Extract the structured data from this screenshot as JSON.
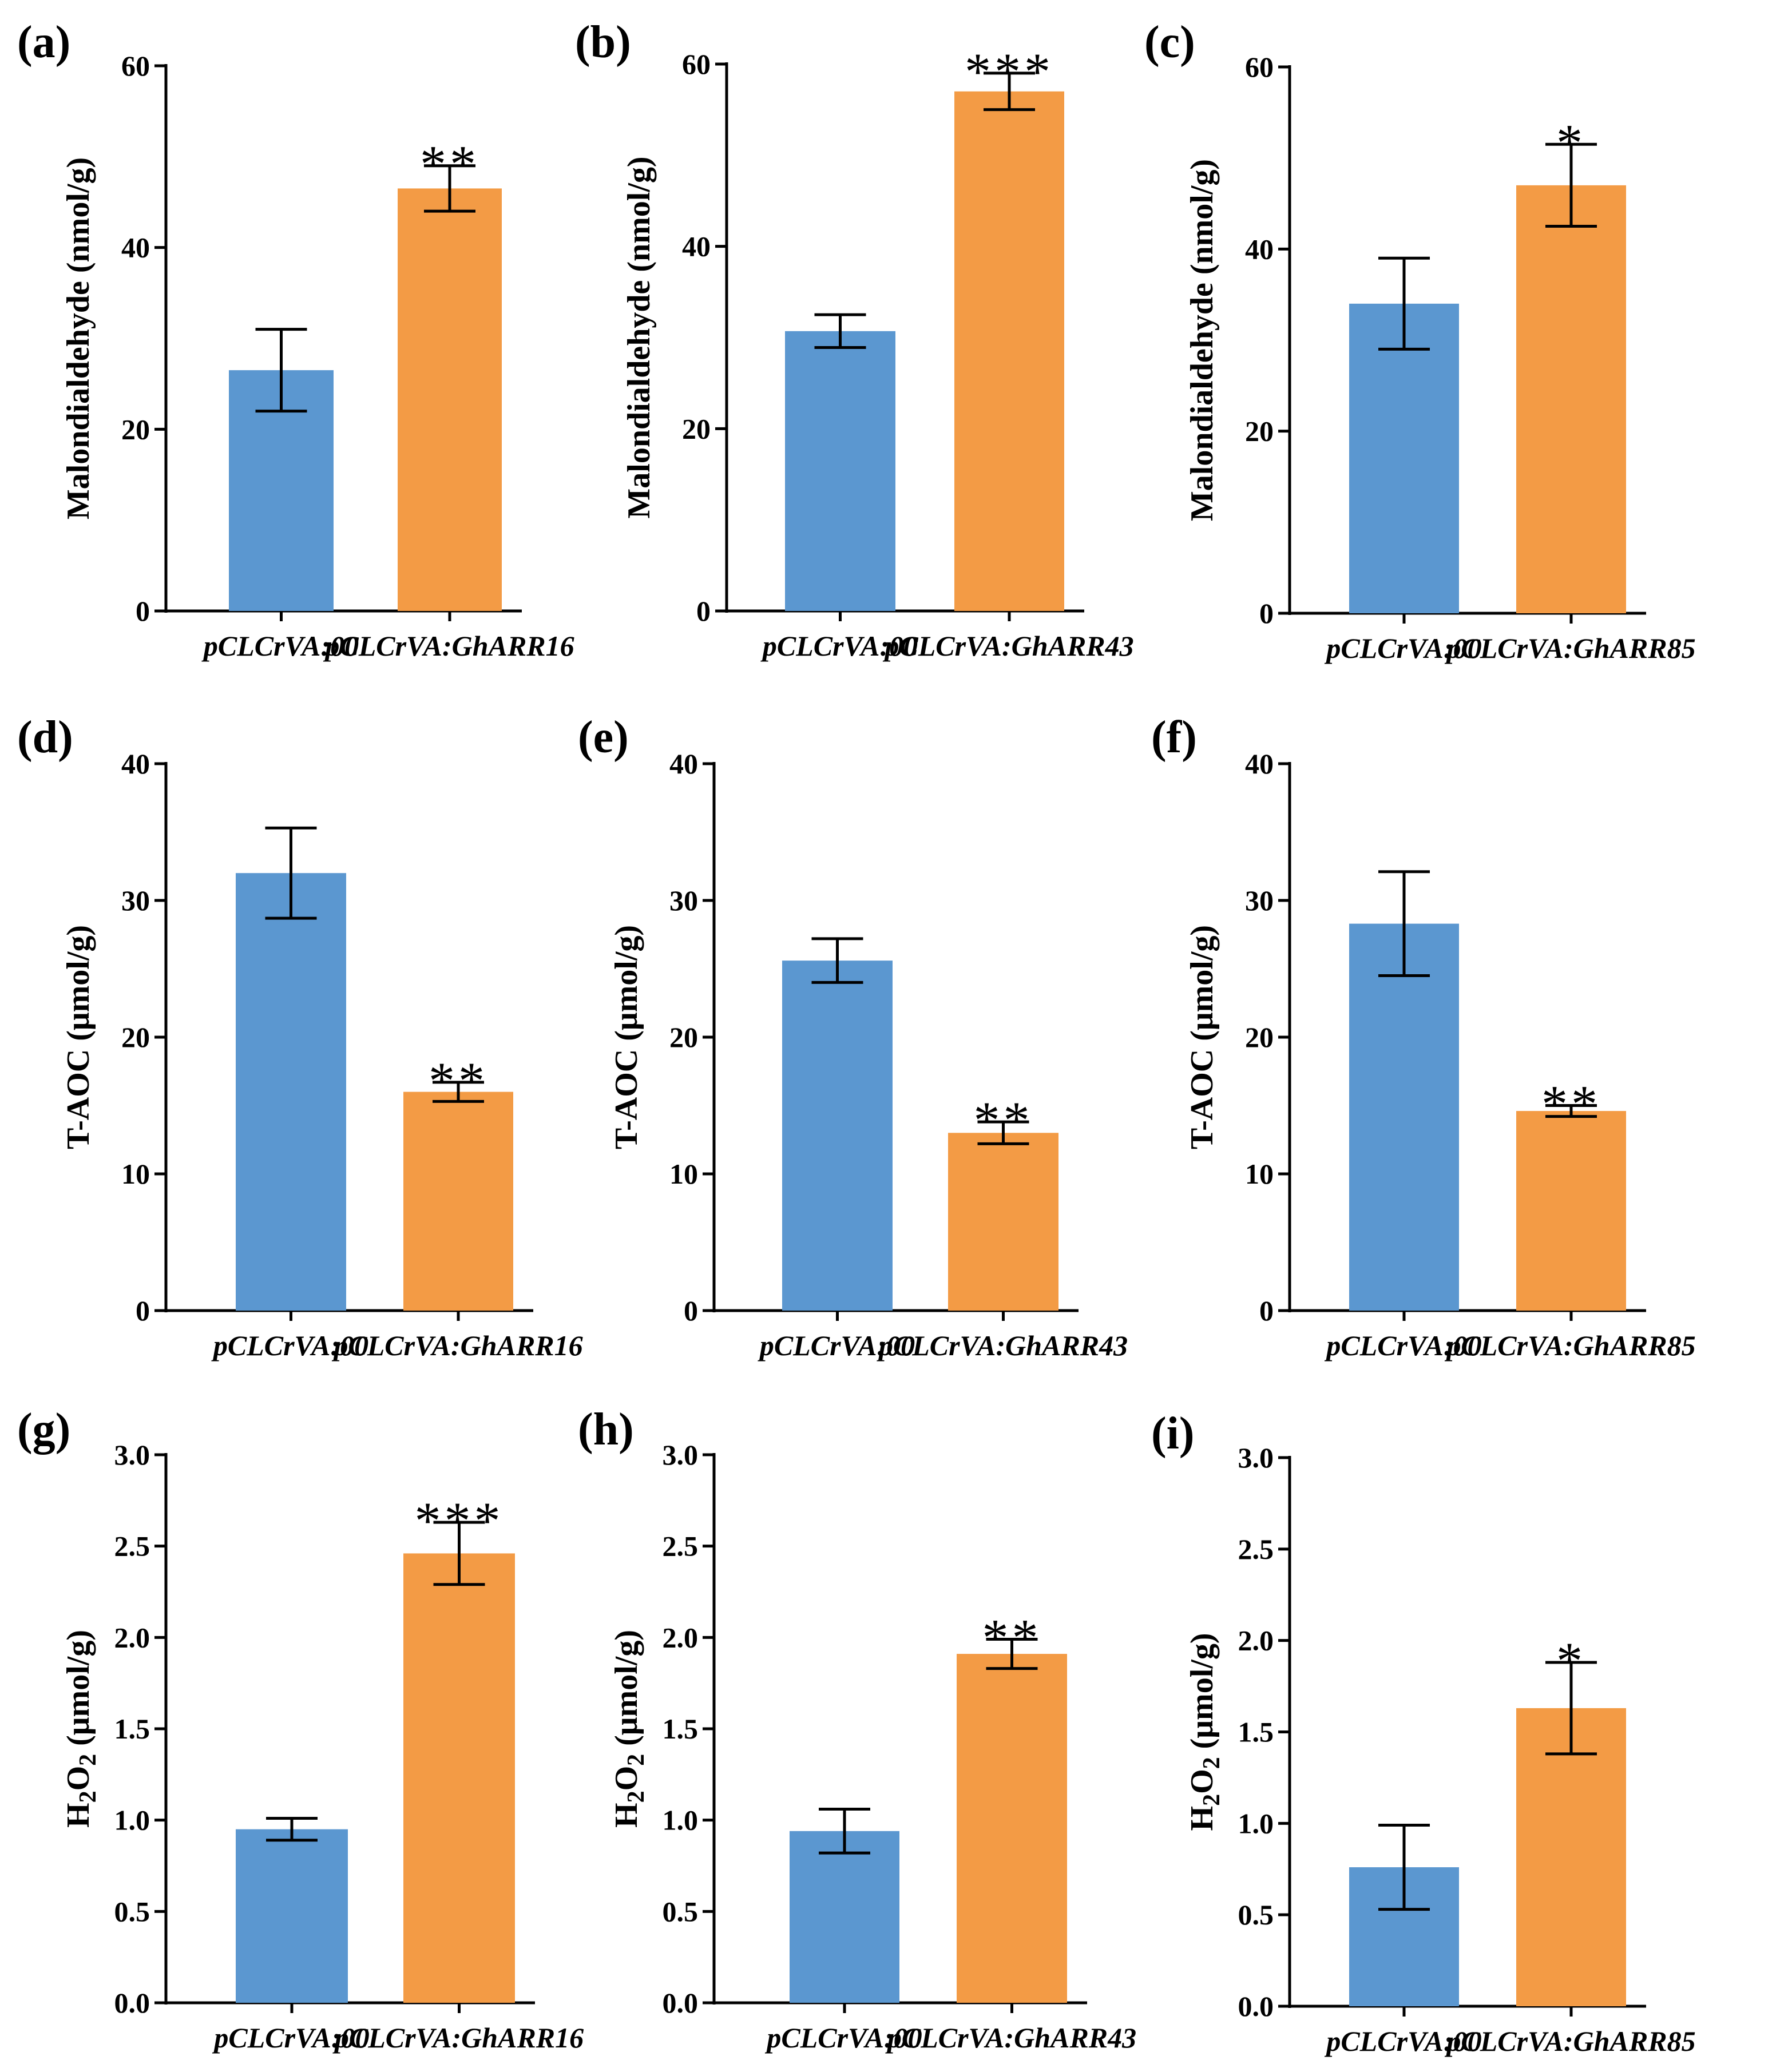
{
  "colors": {
    "control": "#5b97d0",
    "treatment": "#f39b45",
    "axis": "#000000"
  },
  "chart_data": [
    {
      "panel": "(a)",
      "type": "bar",
      "ylabel": "Malondialdehyde (nmol/g)",
      "ylim": [
        0,
        60
      ],
      "yticks": [
        "0",
        "20",
        "40",
        "60"
      ],
      "categories": [
        "pCLCrVA:00",
        "pCLCrVA:GhARR16"
      ],
      "values": [
        26.5,
        46.5
      ],
      "errors": [
        4.5,
        2.5
      ],
      "significance": [
        "",
        "**"
      ]
    },
    {
      "panel": "(b)",
      "type": "bar",
      "ylabel": "Malondialdehyde (nmol/g)",
      "ylim": [
        0,
        60
      ],
      "yticks": [
        "0",
        "20",
        "40",
        "60"
      ],
      "categories": [
        "pCLCrVA:00",
        "pCLCrVA:GhARR43"
      ],
      "values": [
        30.7,
        57.0
      ],
      "errors": [
        1.8,
        2.0
      ],
      "significance": [
        "",
        "***"
      ]
    },
    {
      "panel": "(c)",
      "type": "bar",
      "ylabel": "Malondialdehyde (nmol/g)",
      "ylim": [
        0,
        60
      ],
      "yticks": [
        "0",
        "20",
        "40",
        "60"
      ],
      "categories": [
        "pCLCrVA:00",
        "pCLCrVA:GhARR85"
      ],
      "values": [
        34.0,
        47.0
      ],
      "errors": [
        5.0,
        4.5
      ],
      "significance": [
        "",
        "*"
      ]
    },
    {
      "panel": "(d)",
      "type": "bar",
      "ylabel": "T-AOC (μmol/g)",
      "ylim": [
        0,
        40
      ],
      "yticks": [
        "0",
        "10",
        "20",
        "30",
        "40"
      ],
      "categories": [
        "pCLCrVA:00",
        "pCLCrVA:GhARR16"
      ],
      "values": [
        32.0,
        16.0
      ],
      "errors": [
        3.3,
        0.7
      ],
      "significance": [
        "",
        "**"
      ]
    },
    {
      "panel": "(e)",
      "type": "bar",
      "ylabel": "T-AOC (μmol/g)",
      "ylim": [
        0,
        40
      ],
      "yticks": [
        "0",
        "10",
        "20",
        "30",
        "40"
      ],
      "categories": [
        "pCLCrVA:00",
        "pCLCrVA:GhARR43"
      ],
      "values": [
        25.6,
        13.0
      ],
      "errors": [
        1.6,
        0.8
      ],
      "significance": [
        "",
        "**"
      ]
    },
    {
      "panel": "(f)",
      "type": "bar",
      "ylabel": "T-AOC (μmol/g)",
      "ylim": [
        0,
        40
      ],
      "yticks": [
        "0",
        "10",
        "20",
        "30",
        "40"
      ],
      "categories": [
        "pCLCrVA:00",
        "pCLCrVA:GhARR85"
      ],
      "values": [
        28.3,
        14.6
      ],
      "errors": [
        3.8,
        0.4
      ],
      "significance": [
        "",
        "**"
      ]
    },
    {
      "panel": "(g)",
      "type": "bar",
      "ylabel": "H2O2 (μmol/g)",
      "ylim": [
        0,
        3.0
      ],
      "yticks": [
        "0.0",
        "0.5",
        "1.0",
        "1.5",
        "2.0",
        "2.5",
        "3.0"
      ],
      "categories": [
        "pCLCrVA:00",
        "pCLCrVA:GhARR16"
      ],
      "values": [
        0.95,
        2.46
      ],
      "errors": [
        0.06,
        0.17
      ],
      "significance": [
        "",
        "***"
      ]
    },
    {
      "panel": "(h)",
      "type": "bar",
      "ylabel": "H2O2 (μmol/g)",
      "ylim": [
        0,
        3.0
      ],
      "yticks": [
        "0.0",
        "0.5",
        "1.0",
        "1.5",
        "2.0",
        "2.5",
        "3.0"
      ],
      "categories": [
        "pCLCrVA:00",
        "pCLCrVA:GhARR43"
      ],
      "values": [
        0.94,
        1.91
      ],
      "errors": [
        0.12,
        0.08
      ],
      "significance": [
        "",
        "**"
      ]
    },
    {
      "panel": "(i)",
      "type": "bar",
      "ylabel": "H2O2 (μmol/g)",
      "ylim": [
        0,
        3.0
      ],
      "yticks": [
        "0.0",
        "0.5",
        "1.0",
        "1.5",
        "2.0",
        "2.5",
        "3.0"
      ],
      "categories": [
        "pCLCrVA:00",
        "pCLCrVA:GhARR85"
      ],
      "values": [
        0.76,
        1.63
      ],
      "errors": [
        0.23,
        0.25
      ],
      "significance": [
        "",
        "*"
      ]
    }
  ]
}
